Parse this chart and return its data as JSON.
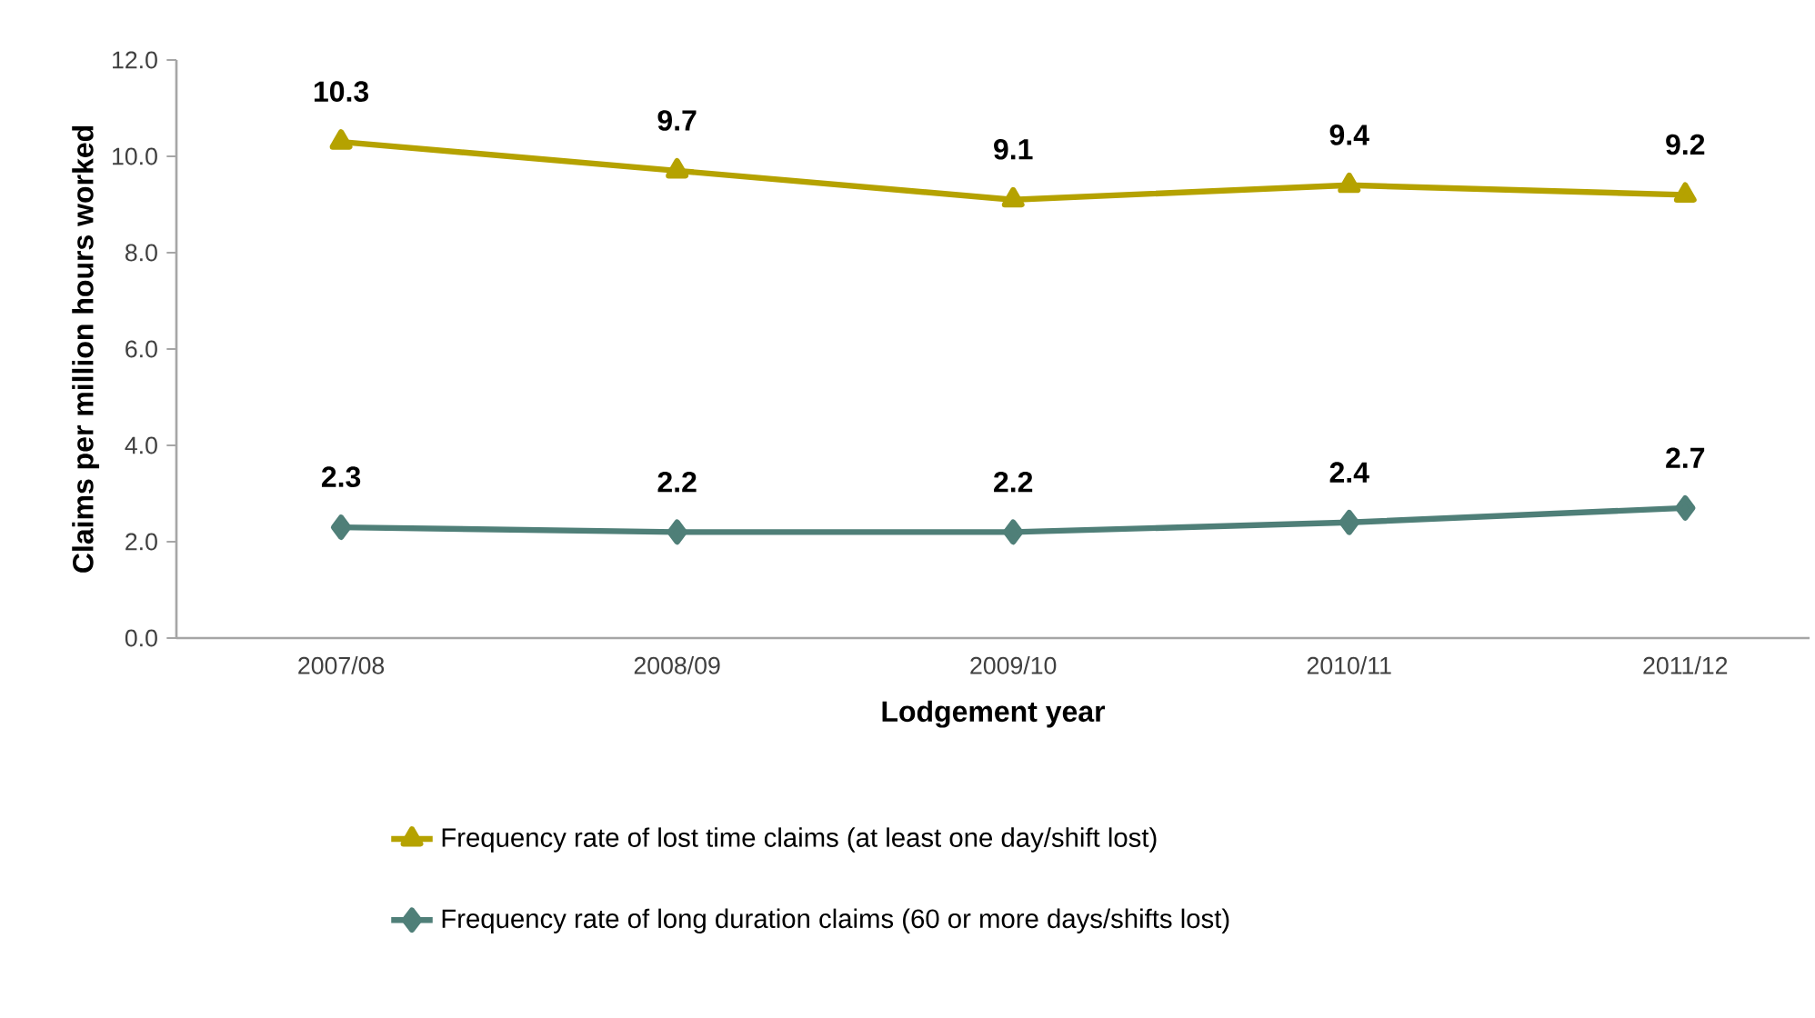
{
  "chart_data": {
    "type": "line",
    "xlabel": "Lodgement year",
    "ylabel": "Claims per million hours worked",
    "categories": [
      "2007/08",
      "2008/09",
      "2009/10",
      "2010/11",
      "2011/12"
    ],
    "series": [
      {
        "name": "Frequency rate of lost time claims (at least one day/shift  lost)",
        "color": "#b5a200",
        "marker": "triangle",
        "values": [
          10.3,
          9.7,
          9.1,
          9.4,
          9.2
        ]
      },
      {
        "name": "Frequency rate of long duration  claims (60 or more days/shifts  lost)",
        "color": "#4f7f78",
        "marker": "diamond",
        "values": [
          2.3,
          2.2,
          2.2,
          2.4,
          2.7
        ]
      }
    ],
    "ylim": [
      0,
      12
    ],
    "yticks": [
      {
        "value": 0,
        "label": "0.0"
      },
      {
        "value": 2,
        "label": "2.0"
      },
      {
        "value": 4,
        "label": "4.0"
      },
      {
        "value": 6,
        "label": "6.0"
      },
      {
        "value": 8,
        "label": "8.0"
      },
      {
        "value": 10,
        "label": "10.0"
      },
      {
        "value": 12,
        "label": "12.0"
      }
    ],
    "data_labels": true,
    "grid": false,
    "legend": "bottom",
    "line_style": "solid"
  }
}
